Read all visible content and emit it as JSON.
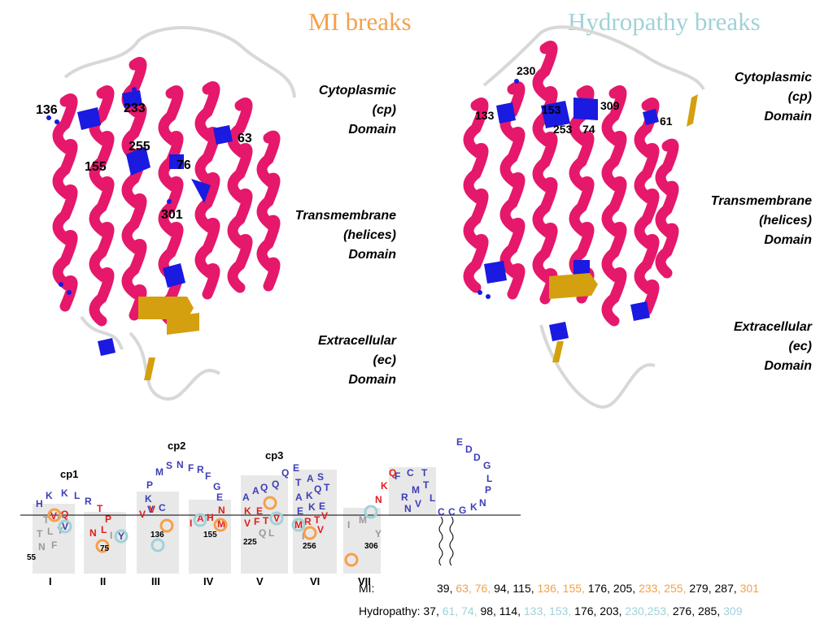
{
  "titles": {
    "left": "MI breaks",
    "right": "Hydropathy breaks"
  },
  "colors": {
    "mi": "#f5a04a",
    "hydro": "#9fd2d8",
    "helix": "#e5186b",
    "mark": "#1a1ae0",
    "strand": "#d4a010",
    "aa_blue": "#3d3db8",
    "aa_red": "#e11c1c",
    "aa_gray": "#9a9a9a"
  },
  "domains": {
    "cp": [
      "Cytoplasmic",
      "(cp)",
      "Domain"
    ],
    "tm": [
      "Transmembrane",
      "(helices)",
      "Domain"
    ],
    "ec": [
      "Extracellular",
      "(ec)",
      "Domain"
    ]
  },
  "left_labels": [
    "136",
    "233",
    "63",
    "255",
    "155",
    "76",
    "301"
  ],
  "right_labels": [
    "230",
    "133",
    "153",
    "309",
    "253",
    "74",
    "61"
  ],
  "topology": {
    "loops": [
      "cp1",
      "cp2",
      "cp3"
    ],
    "helices": [
      "I",
      "II",
      "III",
      "IV",
      "V",
      "VI",
      "VII"
    ],
    "numbers": [
      "55",
      "75",
      "136",
      "155",
      "225",
      "256",
      "306"
    ]
  },
  "mi_row": {
    "label": "MI:",
    "items": [
      {
        "t": "39, ",
        "c": "k"
      },
      {
        "t": "63, 76, ",
        "c": "mi"
      },
      {
        "t": "94, 115, ",
        "c": "k"
      },
      {
        "t": "136, 155, ",
        "c": "mi"
      },
      {
        "t": "176, 205, ",
        "c": "k"
      },
      {
        "t": "233, 255, ",
        "c": "mi"
      },
      {
        "t": "279, 287, ",
        "c": "k"
      },
      {
        "t": "301",
        "c": "mi"
      }
    ]
  },
  "hydro_row": {
    "label": "Hydropathy: ",
    "items": [
      {
        "t": "37, ",
        "c": "k"
      },
      {
        "t": "61, 74, ",
        "c": "hydro"
      },
      {
        "t": "98, 114, ",
        "c": "k"
      },
      {
        "t": "133, 153, ",
        "c": "hydro"
      },
      {
        "t": "176, 203, ",
        "c": "k"
      },
      {
        "t": "230,253, ",
        "c": "hydro"
      },
      {
        "t": "276, 285, ",
        "c": "k"
      },
      {
        "t": "309",
        "c": "hydro"
      }
    ]
  }
}
